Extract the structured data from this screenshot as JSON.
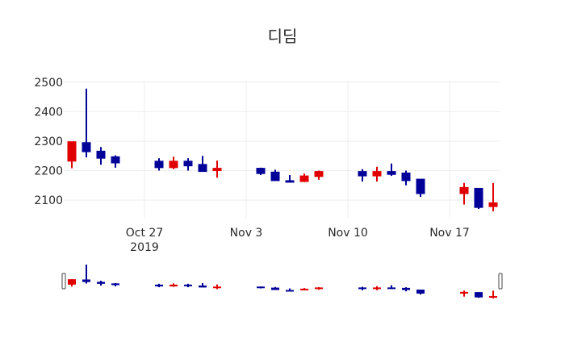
{
  "chart_data": {
    "type": "candlestick",
    "title": "디딤",
    "xlabel": "",
    "ylabel": "",
    "ylim": [
      2040,
      2505
    ],
    "grid": true,
    "legend": "none",
    "increasing_color": "#e00000",
    "decreasing_color": "#000099",
    "yticks": [
      2100,
      2200,
      2300,
      2400,
      2500
    ],
    "xticks": [
      {
        "date": "2019-10-27",
        "label": "Oct 27",
        "sublabel": "2019"
      },
      {
        "date": "2019-11-03",
        "label": "Nov 3",
        "sublabel": ""
      },
      {
        "date": "2019-11-10",
        "label": "Nov 10",
        "sublabel": ""
      },
      {
        "date": "2019-11-17",
        "label": "Nov 17",
        "sublabel": ""
      }
    ],
    "xrange": [
      "2019-10-21T12:00",
      "2019-11-20T12:00"
    ],
    "rangeslider": true,
    "series": [
      {
        "date": "2019-10-22",
        "open": 2232,
        "high": 2298,
        "low": 2208,
        "close": 2298
      },
      {
        "date": "2019-10-23",
        "open": 2295,
        "high": 2478,
        "low": 2245,
        "close": 2264
      },
      {
        "date": "2019-10-24",
        "open": 2266,
        "high": 2280,
        "low": 2220,
        "close": 2242
      },
      {
        "date": "2019-10-25",
        "open": 2247,
        "high": 2252,
        "low": 2210,
        "close": 2226
      },
      {
        "date": "2019-10-28",
        "open": 2232,
        "high": 2242,
        "low": 2200,
        "close": 2210
      },
      {
        "date": "2019-10-29",
        "open": 2210,
        "high": 2247,
        "low": 2205,
        "close": 2232
      },
      {
        "date": "2019-10-30",
        "open": 2232,
        "high": 2242,
        "low": 2200,
        "close": 2216
      },
      {
        "date": "2019-10-31",
        "open": 2221,
        "high": 2250,
        "low": 2197,
        "close": 2197
      },
      {
        "date": "2019-11-01",
        "open": 2200,
        "high": 2234,
        "low": 2176,
        "close": 2208
      },
      {
        "date": "2019-11-04",
        "open": 2208,
        "high": 2210,
        "low": 2185,
        "close": 2190
      },
      {
        "date": "2019-11-05",
        "open": 2195,
        "high": 2203,
        "low": 2166,
        "close": 2166
      },
      {
        "date": "2019-11-06",
        "open": 2166,
        "high": 2185,
        "low": 2163,
        "close": 2163
      },
      {
        "date": "2019-11-07",
        "open": 2163,
        "high": 2190,
        "low": 2161,
        "close": 2182
      },
      {
        "date": "2019-11-08",
        "open": 2180,
        "high": 2200,
        "low": 2169,
        "close": 2197
      },
      {
        "date": "2019-11-11",
        "open": 2197,
        "high": 2205,
        "low": 2163,
        "close": 2182
      },
      {
        "date": "2019-11-12",
        "open": 2182,
        "high": 2213,
        "low": 2163,
        "close": 2197
      },
      {
        "date": "2019-11-13",
        "open": 2197,
        "high": 2224,
        "low": 2182,
        "close": 2187
      },
      {
        "date": "2019-11-14",
        "open": 2192,
        "high": 2200,
        "low": 2150,
        "close": 2166
      },
      {
        "date": "2019-11-15",
        "open": 2171,
        "high": 2171,
        "low": 2111,
        "close": 2122
      },
      {
        "date": "2019-11-18",
        "open": 2122,
        "high": 2158,
        "low": 2085,
        "close": 2143
      },
      {
        "date": "2019-11-19",
        "open": 2140,
        "high": 2140,
        "low": 2070,
        "close": 2075
      },
      {
        "date": "2019-11-20",
        "open": 2078,
        "high": 2158,
        "low": 2062,
        "close": 2091
      }
    ]
  }
}
